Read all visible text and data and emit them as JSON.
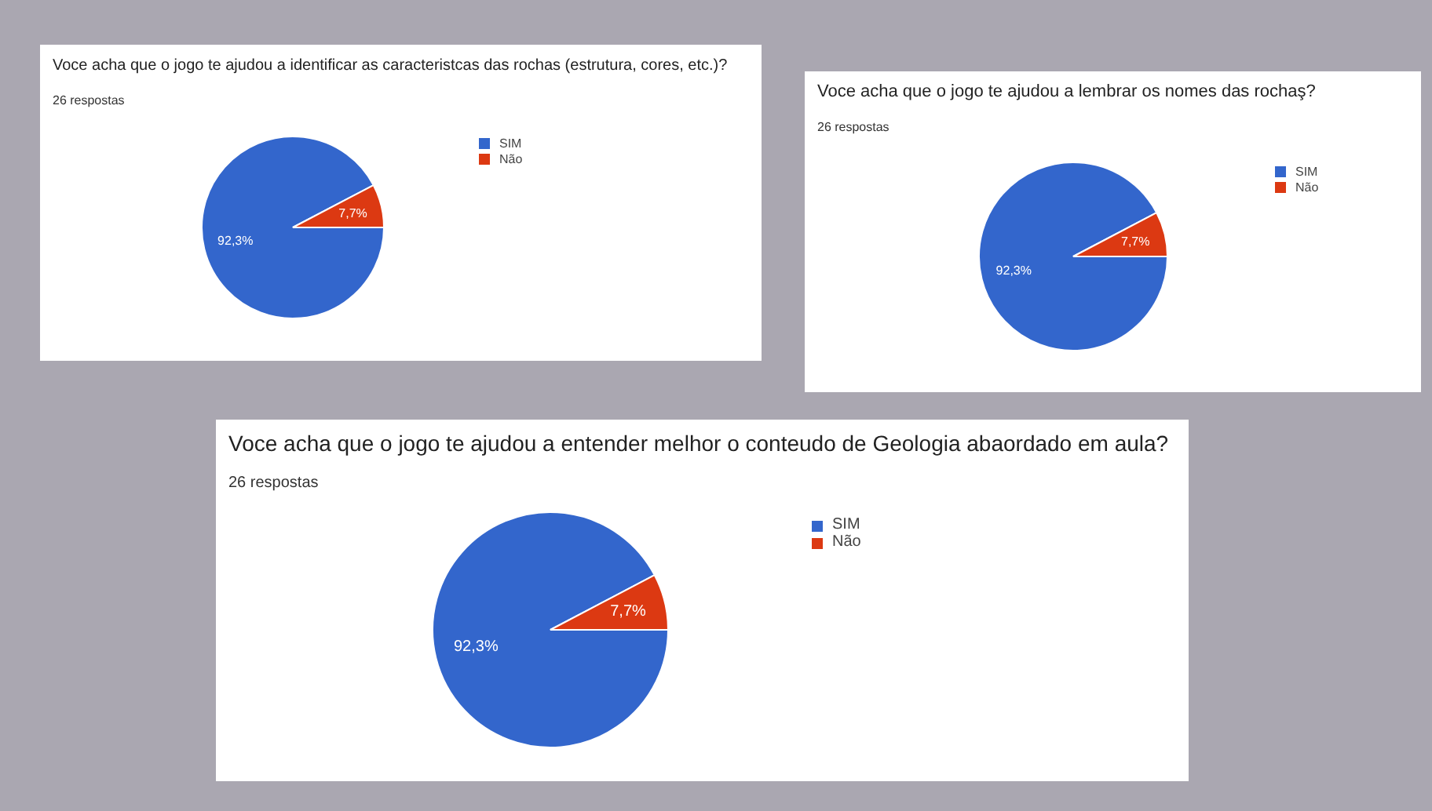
{
  "chart_data": [
    {
      "type": "pie",
      "title": "Voce acha que o jogo te ajudou a identificar as caracteristcas das rochas (estrutura, cores, etc.)?",
      "subtitle": "26 respostas",
      "categories": [
        "SIM",
        "Não"
      ],
      "values": [
        92.3,
        7.7
      ],
      "colors": [
        "#3366cc",
        "#dc3912"
      ],
      "value_labels": [
        "92,3%",
        "7,7%"
      ],
      "legend": "right"
    },
    {
      "type": "pie",
      "title": "Voce acha que o jogo te ajudou a lembrar os nomes das rochaş?",
      "subtitle": "26 respostas",
      "categories": [
        "SIM",
        "Não"
      ],
      "values": [
        92.3,
        7.7
      ],
      "colors": [
        "#3366cc",
        "#dc3912"
      ],
      "value_labels": [
        "92,3%",
        "7,7%"
      ],
      "legend": "right"
    },
    {
      "type": "pie",
      "title": "Voce acha que o jogo te ajudou a entender melhor o conteudo de Geologia abaordado em aula?",
      "subtitle": "26 respostas",
      "categories": [
        "SIM",
        "Não"
      ],
      "values": [
        92.3,
        7.7
      ],
      "colors": [
        "#3366cc",
        "#dc3912"
      ],
      "value_labels": [
        "92,3%",
        "7,7%"
      ],
      "legend": "right"
    }
  ]
}
